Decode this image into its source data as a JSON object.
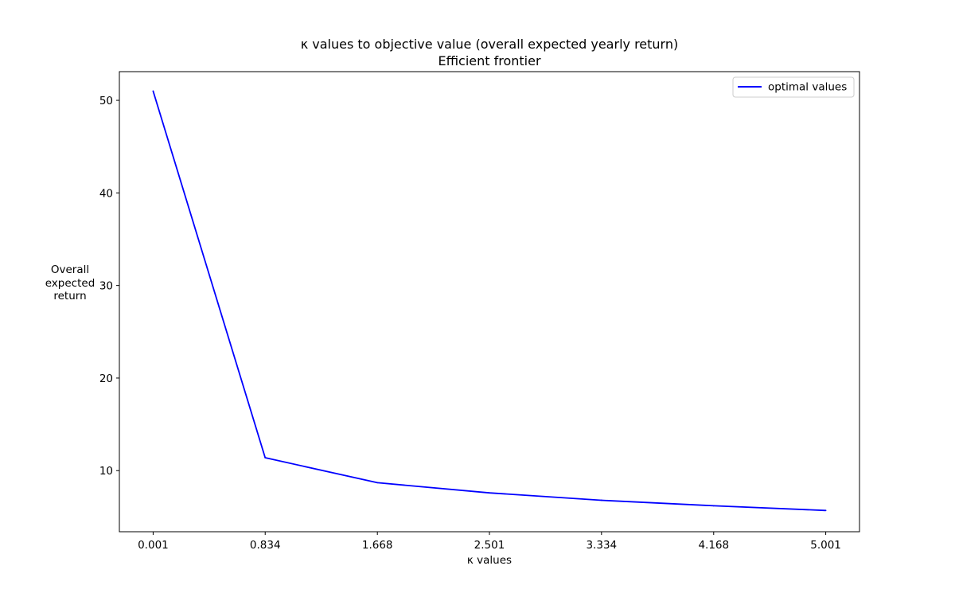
{
  "chart_data": {
    "type": "line",
    "title": "κ values to objective value (overall expected yearly return)",
    "subtitle": "Efficient frontier",
    "xlabel": "κ values",
    "ylabel": [
      "Overall",
      "expected",
      "return"
    ],
    "x": [
      0.001,
      0.834,
      1.668,
      2.501,
      3.334,
      4.168,
      5.001
    ],
    "x_tick_labels": [
      "0.001",
      "0.834",
      "1.668",
      "2.501",
      "3.334",
      "4.168",
      "5.001"
    ],
    "xlim": [
      -0.25,
      5.252
    ],
    "yticks": [
      10,
      20,
      30,
      40,
      50
    ],
    "ylim": [
      3.4,
      53.1
    ],
    "series": [
      {
        "name": "optimal values",
        "color": "#0000ff",
        "values": [
          51.0,
          11.4,
          8.7,
          7.6,
          6.8,
          6.2,
          5.7
        ]
      }
    ],
    "legend": "top-right",
    "grid": false
  }
}
